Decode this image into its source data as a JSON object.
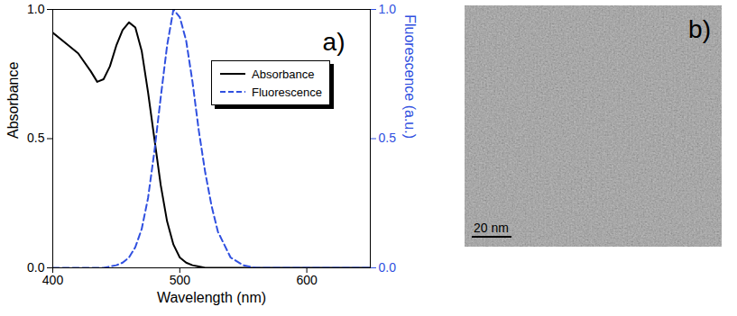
{
  "chart_data": {
    "type": "line",
    "annotation": "a)",
    "x_label": "Wavelength (nm)",
    "y_label": "Absorbance",
    "y2_label": "Fluorescence (a.u.)",
    "x": [
      400,
      410,
      420,
      430,
      435,
      440,
      445,
      450,
      455,
      460,
      465,
      470,
      475,
      480,
      485,
      490,
      495,
      500,
      505,
      510,
      515,
      520,
      525,
      530,
      540,
      550,
      560,
      600,
      650
    ],
    "series": [
      {
        "name": "Absorbance",
        "color": "#000000",
        "line_style": "solid",
        "values": [
          0.91,
          0.87,
          0.83,
          0.76,
          0.72,
          0.73,
          0.78,
          0.86,
          0.92,
          0.95,
          0.93,
          0.84,
          0.68,
          0.5,
          0.32,
          0.18,
          0.09,
          0.04,
          0.02,
          0.01,
          0.005,
          0,
          0,
          0,
          0,
          0,
          0,
          0,
          0
        ]
      },
      {
        "name": "Fluorescence",
        "color": "#3050e0",
        "line_style": "dashed",
        "axis": "y2",
        "values": [
          0,
          0,
          0,
          0,
          0,
          0,
          0.005,
          0.01,
          0.02,
          0.04,
          0.08,
          0.15,
          0.27,
          0.45,
          0.66,
          0.86,
          1.0,
          0.97,
          0.88,
          0.72,
          0.53,
          0.37,
          0.24,
          0.14,
          0.04,
          0.01,
          0,
          0,
          0
        ]
      }
    ],
    "xlim": [
      400,
      650
    ],
    "xticks": [
      400,
      500,
      600
    ],
    "ylim": [
      0,
      1
    ],
    "yticks": [
      {
        "value": 0,
        "label": "0.0"
      },
      {
        "value": 0.5,
        "label": "0.5"
      },
      {
        "value": 1,
        "label": "1.0"
      }
    ],
    "y2lim": [
      0,
      1
    ],
    "y2ticks": [
      {
        "value": 0,
        "label": "0.0"
      },
      {
        "value": 0.5,
        "label": "0.5"
      },
      {
        "value": 1,
        "label": "1.0"
      }
    ],
    "legend": "center right",
    "grid": false
  },
  "image": {
    "label": "b)",
    "scale_bar": "20 nm"
  }
}
